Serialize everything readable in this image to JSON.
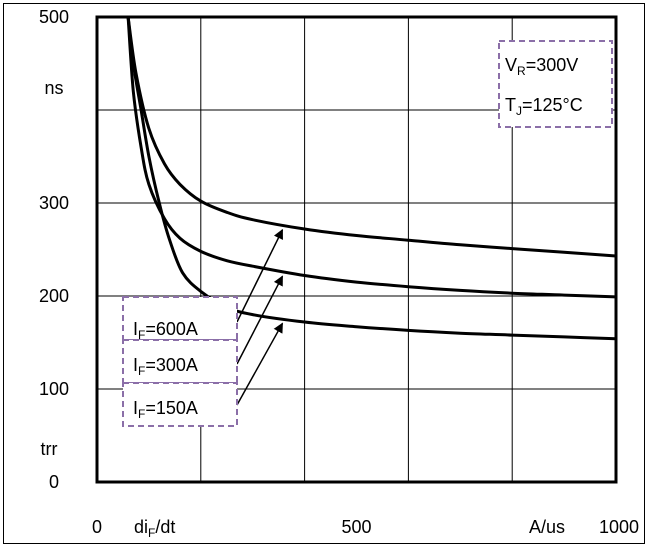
{
  "chart_data": {
    "type": "line",
    "title": "",
    "xlabel": "di_F/dt",
    "x_unit": "A/us",
    "ylabel": "trr",
    "y_unit": "ns",
    "xlim": [
      0,
      1000
    ],
    "ylim": [
      0,
      500
    ],
    "x_ticks": [
      {
        "value": 0,
        "label": "0"
      },
      {
        "value": 500,
        "label": "500"
      },
      {
        "value": 1000,
        "label": "1000"
      }
    ],
    "y_ticks": [
      {
        "value": 0,
        "label": "0"
      },
      {
        "value": 100,
        "label": "100"
      },
      {
        "value": 200,
        "label": "200"
      },
      {
        "value": 300,
        "label": "300"
      },
      {
        "value": 500,
        "label": "500"
      }
    ],
    "grid": true,
    "grid_x_step": 200,
    "grid_y_step": 100,
    "conditions": [
      {
        "main": "V",
        "sub": "R",
        "rest": "=300V"
      },
      {
        "main": "T",
        "sub": "J",
        "rest": "=125°C"
      }
    ],
    "series": [
      {
        "name": "IF=600A",
        "label": {
          "main": "I",
          "sub": "F",
          "rest": "=600A"
        },
        "x": [
          60,
          75,
          100,
          130,
          160,
          200,
          250,
          300,
          400,
          500,
          600,
          700,
          800,
          900,
          1000
        ],
        "y": [
          500,
          440,
          380,
          342,
          320,
          302,
          290,
          282,
          272,
          265,
          260,
          255,
          251,
          247,
          243
        ]
      },
      {
        "name": "IF=300A",
        "label": {
          "main": "I",
          "sub": "F",
          "rest": "=300A"
        },
        "x": [
          60,
          70,
          85,
          100,
          130,
          160,
          200,
          250,
          300,
          400,
          500,
          600,
          700,
          800,
          900,
          1000
        ],
        "y": [
          500,
          420,
          360,
          320,
          283,
          262,
          248,
          238,
          232,
          222,
          215,
          210,
          206,
          203,
          201,
          199
        ]
      },
      {
        "name": "IF=150A",
        "label": {
          "main": "I",
          "sub": "F",
          "rest": "=150A"
        },
        "x": [
          60,
          70,
          85,
          100,
          120,
          140,
          165,
          200,
          250,
          300,
          400,
          500,
          600,
          700,
          800,
          900,
          1000
        ],
        "y": [
          500,
          450,
          400,
          350,
          300,
          260,
          225,
          205,
          188,
          180,
          172,
          167,
          163,
          160,
          158,
          156,
          154
        ]
      }
    ]
  }
}
